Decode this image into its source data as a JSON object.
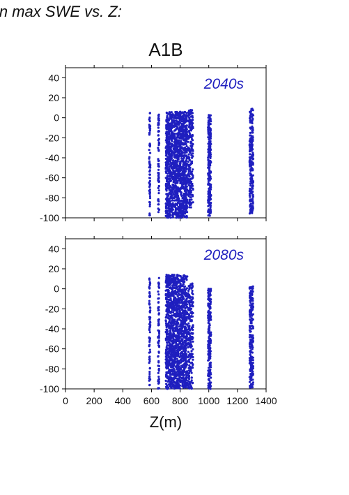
{
  "header": {
    "title": "in max SWE vs. Z:",
    "scenario": "A1B"
  },
  "chart_data": {
    "type": "scatter",
    "xlabel": "Z(m)",
    "ylabel": "",
    "xlim": [
      0,
      1400
    ],
    "ylim": [
      -100,
      50
    ],
    "xticks": [
      0,
      200,
      400,
      600,
      800,
      1000,
      1200,
      1400
    ],
    "yticks": [
      -100,
      -80,
      -60,
      -40,
      -20,
      0,
      20,
      40
    ],
    "marker_color": "#1f1fbf",
    "panels": [
      {
        "label": "2040s",
        "clusters": [
          {
            "x": 588,
            "y_range": [
              -98,
              5
            ]
          },
          {
            "x": 650,
            "y_range": [
              -95,
              4
            ]
          },
          {
            "x_range": [
              700,
              850
            ],
            "y_range": [
              -100,
              6
            ]
          },
          {
            "x_range": [
              855,
              890
            ],
            "y_range": [
              -90,
              8
            ]
          },
          {
            "x_range": [
              995,
              1015
            ],
            "y_range": [
              -98,
              3
            ]
          },
          {
            "x_range": [
              1285,
              1310
            ],
            "y_range": [
              -96,
              9
            ]
          }
        ]
      },
      {
        "label": "2080s",
        "clusters": [
          {
            "x": 588,
            "y_range": [
              -100,
              12
            ]
          },
          {
            "x": 650,
            "y_range": [
              -100,
              12
            ]
          },
          {
            "x_range": [
              700,
              850
            ],
            "y_range": [
              -100,
              14
            ]
          },
          {
            "x_range": [
              855,
              890
            ],
            "y_range": [
              -100,
              6
            ]
          },
          {
            "x_range": [
              995,
              1015
            ],
            "y_range": [
              -100,
              0
            ]
          },
          {
            "x_range": [
              1285,
              1310
            ],
            "y_range": [
              -100,
              3
            ]
          }
        ]
      }
    ]
  }
}
